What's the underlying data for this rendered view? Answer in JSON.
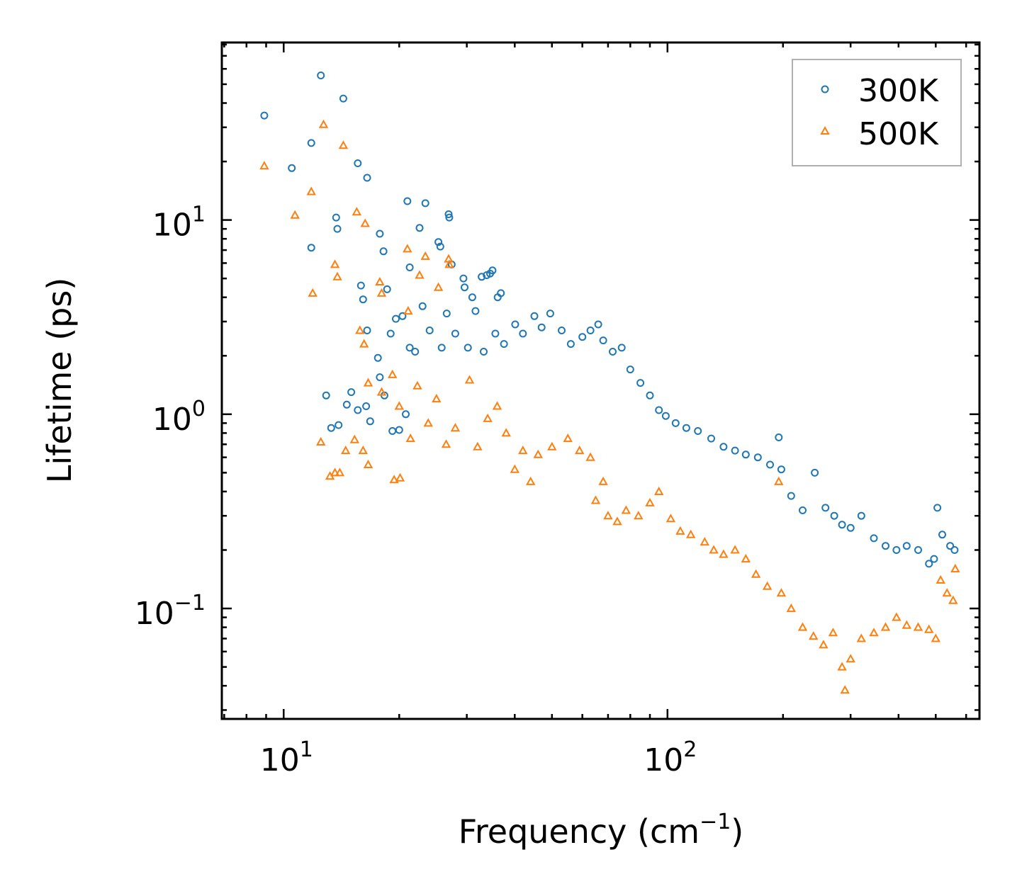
{
  "chart_data": {
    "type": "scatter",
    "title": "",
    "xlabel": "Frequency (cm",
    "xlabel_sup": "−1",
    "xlabel_end": ")",
    "ylabel": "Lifetime (ps)",
    "xscale": "log",
    "yscale": "log",
    "xlim": [
      6.9,
      650
    ],
    "ylim": [
      0.027,
      82
    ],
    "x_ticks": [
      {
        "value": 10,
        "base": "10",
        "exp": "1"
      },
      {
        "value": 100,
        "base": "10",
        "exp": "2"
      }
    ],
    "y_ticks": [
      {
        "value": 0.1,
        "base": "10",
        "exp": "−1"
      },
      {
        "value": 1,
        "base": "10",
        "exp": "0"
      },
      {
        "value": 10,
        "base": "10",
        "exp": "1"
      }
    ],
    "legend_position": "top-right",
    "series": [
      {
        "name": "300K",
        "marker": "circle",
        "color": "#1f77b4",
        "points": [
          [
            8.9,
            34.5
          ],
          [
            10.5,
            18.5
          ],
          [
            11.8,
            7.2
          ],
          [
            11.8,
            24.9
          ],
          [
            12.5,
            55.5
          ],
          [
            13.7,
            10.3
          ],
          [
            13.8,
            9.0
          ],
          [
            14.3,
            42.2
          ],
          [
            15.6,
            19.6
          ],
          [
            16.5,
            16.5
          ],
          [
            17.8,
            8.5
          ],
          [
            18.2,
            6.9
          ],
          [
            21.0,
            12.5
          ],
          [
            21.3,
            5.7
          ],
          [
            22.6,
            9.1
          ],
          [
            23.4,
            12.2
          ],
          [
            25.3,
            7.7
          ],
          [
            25.6,
            7.3
          ],
          [
            26.9,
            10.7
          ],
          [
            27.0,
            10.3
          ],
          [
            27.4,
            5.9
          ],
          [
            29.4,
            5.0
          ],
          [
            32.8,
            5.1
          ],
          [
            33.8,
            5.2
          ],
          [
            34.5,
            5.3
          ],
          [
            35.0,
            5.5
          ],
          [
            36.1,
            4.0
          ],
          [
            36.8,
            4.2
          ],
          [
            31.0,
            4.0
          ],
          [
            29.6,
            4.5
          ],
          [
            15.9,
            4.6
          ],
          [
            16.1,
            3.9
          ],
          [
            18.6,
            4.4
          ],
          [
            20.4,
            3.2
          ],
          [
            12.9,
            1.25
          ],
          [
            13.3,
            0.85
          ],
          [
            13.9,
            0.88
          ],
          [
            14.6,
            1.12
          ],
          [
            15.0,
            1.3
          ],
          [
            15.6,
            1.05
          ],
          [
            16.4,
            1.1
          ],
          [
            16.8,
            0.92
          ],
          [
            17.8,
            1.55
          ],
          [
            18.3,
            1.25
          ],
          [
            19.2,
            0.82
          ],
          [
            20.0,
            0.83
          ],
          [
            16.5,
            2.7
          ],
          [
            17.6,
            1.95
          ],
          [
            19.0,
            2.6
          ],
          [
            19.6,
            3.1
          ],
          [
            20.8,
            1.0
          ],
          [
            21.3,
            2.2
          ],
          [
            22.0,
            2.1
          ],
          [
            23.0,
            3.6
          ],
          [
            24.0,
            2.7
          ],
          [
            25.8,
            2.2
          ],
          [
            26.6,
            3.3
          ],
          [
            28.0,
            2.6
          ],
          [
            30.2,
            2.2
          ],
          [
            31.6,
            3.4
          ],
          [
            33.2,
            2.1
          ],
          [
            35.6,
            2.6
          ],
          [
            37.5,
            2.3
          ],
          [
            40.1,
            2.9
          ],
          [
            42.0,
            2.6
          ],
          [
            45.0,
            3.2
          ],
          [
            47.0,
            2.8
          ],
          [
            49.5,
            3.3
          ],
          [
            53.0,
            2.7
          ],
          [
            56.0,
            2.3
          ],
          [
            60.0,
            2.5
          ],
          [
            63.0,
            2.7
          ],
          [
            66.0,
            2.9
          ],
          [
            68.0,
            2.4
          ],
          [
            72.0,
            2.1
          ],
          [
            76.0,
            2.2
          ],
          [
            80.0,
            1.7
          ],
          [
            85.0,
            1.45
          ],
          [
            90.0,
            1.25
          ],
          [
            95.0,
            1.05
          ],
          [
            99.0,
            0.98
          ],
          [
            105.0,
            0.9
          ],
          [
            112.0,
            0.85
          ],
          [
            120.0,
            0.82
          ],
          [
            130.0,
            0.75
          ],
          [
            140.0,
            0.68
          ],
          [
            150.0,
            0.65
          ],
          [
            160.0,
            0.62
          ],
          [
            172.0,
            0.6
          ],
          [
            185.0,
            0.55
          ],
          [
            195.0,
            0.76
          ],
          [
            198.0,
            0.52
          ],
          [
            210.0,
            0.38
          ],
          [
            225.0,
            0.32
          ],
          [
            242.0,
            0.5
          ],
          [
            258.0,
            0.33
          ],
          [
            272.0,
            0.3
          ],
          [
            285.0,
            0.27
          ],
          [
            300.0,
            0.26
          ],
          [
            320.0,
            0.3
          ],
          [
            345.0,
            0.23
          ],
          [
            370.0,
            0.21
          ],
          [
            395.0,
            0.2
          ],
          [
            420.0,
            0.21
          ],
          [
            450.0,
            0.2
          ],
          [
            480.0,
            0.17
          ],
          [
            495.0,
            0.18
          ],
          [
            505.0,
            0.33
          ],
          [
            520.0,
            0.24
          ],
          [
            545.0,
            0.21
          ],
          [
            560.0,
            0.2
          ]
        ]
      },
      {
        "name": "500K",
        "marker": "triangle",
        "color": "#ff7f0e",
        "points": [
          [
            8.9,
            19.0
          ],
          [
            10.7,
            10.6
          ],
          [
            11.8,
            14.0
          ],
          [
            11.9,
            4.2
          ],
          [
            12.7,
            31.0
          ],
          [
            13.6,
            5.9
          ],
          [
            13.8,
            5.1
          ],
          [
            14.3,
            24.2
          ],
          [
            15.5,
            11.0
          ],
          [
            16.3,
            9.6
          ],
          [
            17.8,
            4.8
          ],
          [
            18.0,
            4.2
          ],
          [
            21.0,
            7.1
          ],
          [
            21.1,
            3.4
          ],
          [
            22.6,
            5.2
          ],
          [
            23.4,
            6.5
          ],
          [
            25.3,
            4.5
          ],
          [
            26.9,
            6.3
          ],
          [
            27.0,
            5.9
          ],
          [
            13.2,
            0.48
          ],
          [
            13.6,
            0.5
          ],
          [
            14.0,
            0.5
          ],
          [
            14.5,
            0.65
          ],
          [
            15.3,
            0.74
          ],
          [
            16.1,
            0.65
          ],
          [
            16.6,
            0.55
          ],
          [
            12.5,
            0.72
          ],
          [
            19.4,
            0.46
          ],
          [
            20.1,
            0.47
          ],
          [
            15.8,
            2.7
          ],
          [
            16.2,
            2.3
          ],
          [
            16.6,
            1.45
          ],
          [
            18.0,
            1.3
          ],
          [
            19.2,
            1.6
          ],
          [
            20.0,
            1.1
          ],
          [
            21.4,
            0.75
          ],
          [
            22.3,
            1.4
          ],
          [
            23.8,
            0.9
          ],
          [
            25.0,
            1.2
          ],
          [
            26.5,
            0.7
          ],
          [
            28.0,
            0.85
          ],
          [
            30.5,
            1.5
          ],
          [
            32.0,
            0.68
          ],
          [
            34.0,
            0.95
          ],
          [
            36.0,
            1.1
          ],
          [
            38.0,
            0.8
          ],
          [
            40.0,
            0.52
          ],
          [
            42.0,
            0.65
          ],
          [
            44.0,
            0.45
          ],
          [
            46.0,
            0.62
          ],
          [
            50.0,
            0.68
          ],
          [
            55.0,
            0.75
          ],
          [
            59.0,
            0.65
          ],
          [
            63.0,
            0.6
          ],
          [
            65.0,
            0.36
          ],
          [
            68.0,
            0.45
          ],
          [
            70.0,
            0.3
          ],
          [
            74.0,
            0.28
          ],
          [
            78.0,
            0.32
          ],
          [
            84.0,
            0.3
          ],
          [
            90.0,
            0.35
          ],
          [
            95.0,
            0.4
          ],
          [
            102.0,
            0.29
          ],
          [
            108.0,
            0.25
          ],
          [
            115.0,
            0.24
          ],
          [
            125.0,
            0.22
          ],
          [
            132.0,
            0.2
          ],
          [
            140.0,
            0.19
          ],
          [
            150.0,
            0.2
          ],
          [
            160.0,
            0.18
          ],
          [
            170.0,
            0.15
          ],
          [
            182.0,
            0.13
          ],
          [
            195.0,
            0.45
          ],
          [
            198.0,
            0.12
          ],
          [
            210.0,
            0.1
          ],
          [
            225.0,
            0.08
          ],
          [
            240.0,
            0.072
          ],
          [
            255.0,
            0.065
          ],
          [
            270.0,
            0.075
          ],
          [
            285.0,
            0.05
          ],
          [
            290.0,
            0.038
          ],
          [
            300.0,
            0.055
          ],
          [
            320.0,
            0.07
          ],
          [
            345.0,
            0.075
          ],
          [
            370.0,
            0.08
          ],
          [
            395.0,
            0.09
          ],
          [
            420.0,
            0.082
          ],
          [
            450.0,
            0.08
          ],
          [
            480.0,
            0.078
          ],
          [
            500.0,
            0.07
          ],
          [
            515.0,
            0.14
          ],
          [
            535.0,
            0.12
          ],
          [
            555.0,
            0.11
          ],
          [
            562.0,
            0.16
          ]
        ]
      }
    ]
  }
}
